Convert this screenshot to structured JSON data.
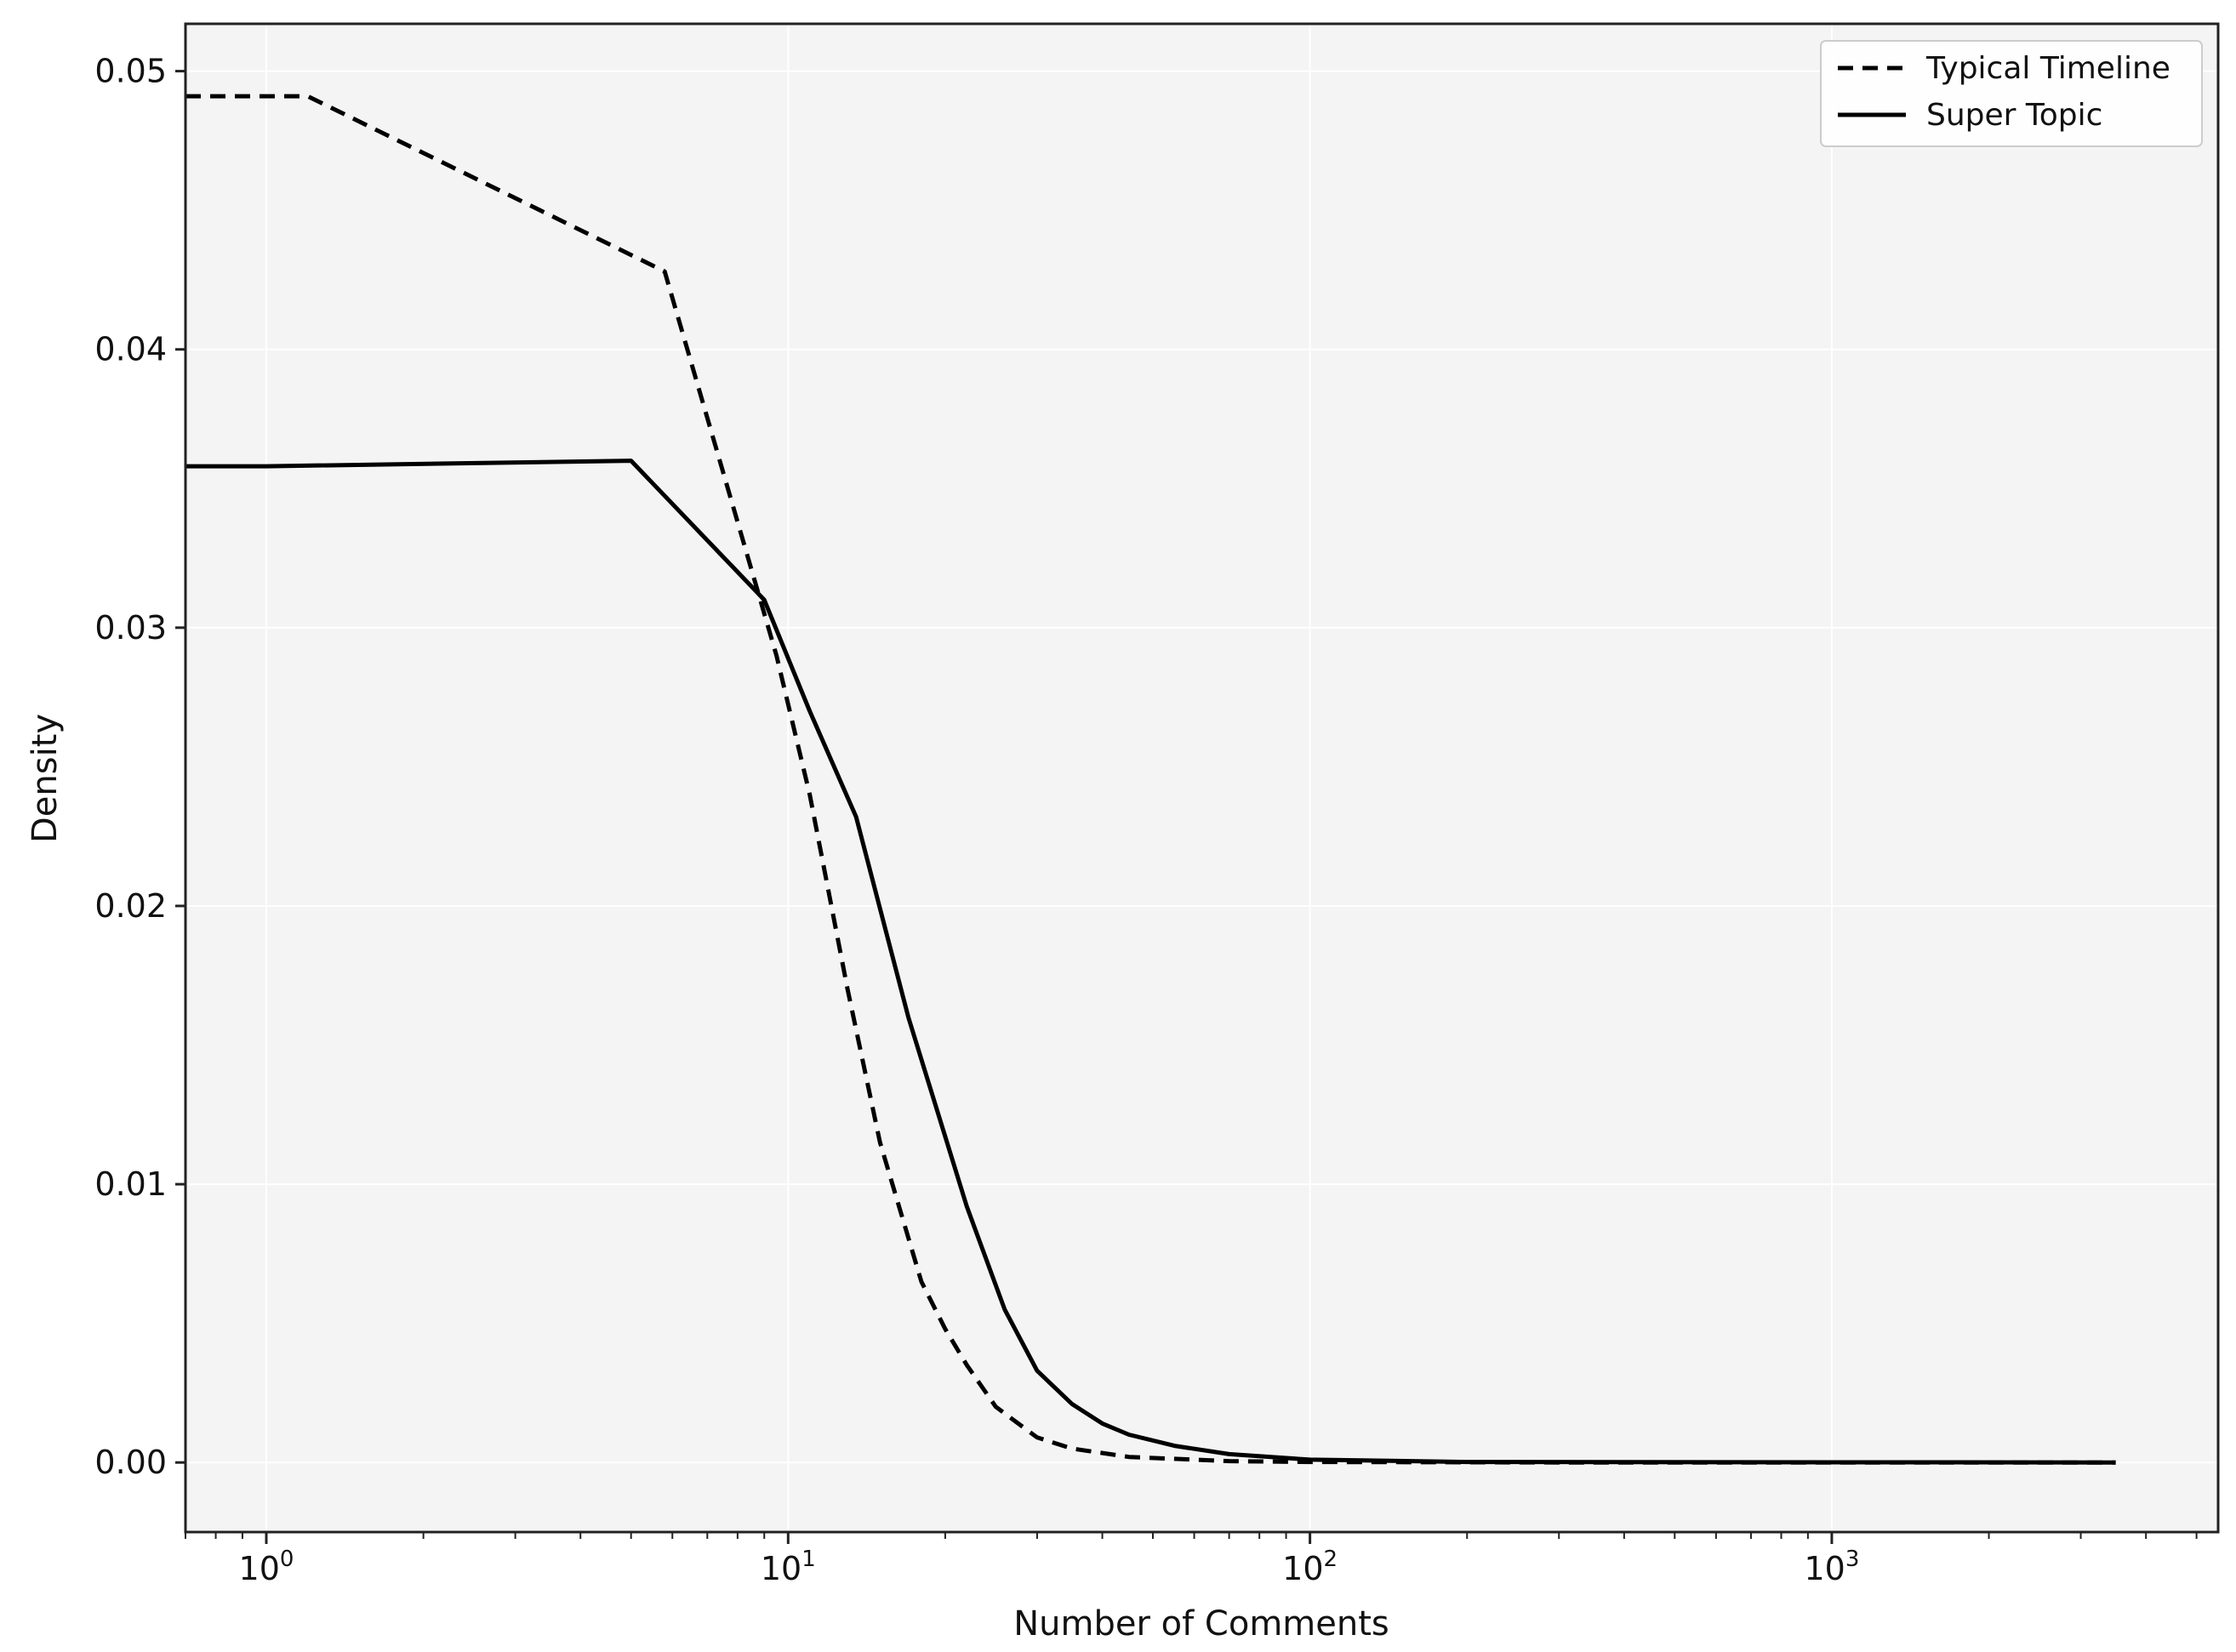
{
  "chart_data": {
    "type": "line",
    "title": "",
    "xlabel": "Number of Comments",
    "ylabel": "Density",
    "x_scale": "log",
    "xlim": [
      0.7,
      5500
    ],
    "ylim": [
      -0.0025,
      0.0517
    ],
    "x_ticks": [
      {
        "value": 1,
        "base": "10",
        "exp": "0"
      },
      {
        "value": 10,
        "base": "10",
        "exp": "1"
      },
      {
        "value": 100,
        "base": "10",
        "exp": "2"
      },
      {
        "value": 1000,
        "base": "10",
        "exp": "3"
      }
    ],
    "y_ticks": [
      {
        "value": 0.0,
        "label": "0.00"
      },
      {
        "value": 0.01,
        "label": "0.01"
      },
      {
        "value": 0.02,
        "label": "0.02"
      },
      {
        "value": 0.03,
        "label": "0.03"
      },
      {
        "value": 0.04,
        "label": "0.04"
      },
      {
        "value": 0.05,
        "label": "0.05"
      }
    ],
    "grid": true,
    "legend_position": "top-right",
    "series": [
      {
        "name": "Typical Timeline",
        "style": "dashed",
        "color": "#000000",
        "points": [
          [
            0.7,
            0.0491
          ],
          [
            1.2,
            0.0491
          ],
          [
            5.8,
            0.0428
          ],
          [
            9.5,
            0.029
          ],
          [
            11,
            0.024
          ],
          [
            13,
            0.017
          ],
          [
            15,
            0.0115
          ],
          [
            18,
            0.0065
          ],
          [
            20,
            0.0048
          ],
          [
            22,
            0.0035
          ],
          [
            25,
            0.002
          ],
          [
            30,
            0.0009
          ],
          [
            35,
            0.0005
          ],
          [
            45,
            0.0002
          ],
          [
            70,
            5e-05
          ],
          [
            100,
            2e-05
          ],
          [
            300,
            0.0
          ],
          [
            3500,
            0.0
          ]
        ]
      },
      {
        "name": "Super Topic",
        "style": "solid",
        "color": "#000000",
        "points": [
          [
            0.7,
            0.0358
          ],
          [
            1.0,
            0.0358
          ],
          [
            5.0,
            0.036
          ],
          [
            9.0,
            0.031
          ],
          [
            11,
            0.027
          ],
          [
            13.5,
            0.0232
          ],
          [
            17,
            0.016
          ],
          [
            22,
            0.0092
          ],
          [
            26,
            0.0055
          ],
          [
            30,
            0.0033
          ],
          [
            35,
            0.0021
          ],
          [
            40,
            0.0014
          ],
          [
            45,
            0.001
          ],
          [
            55,
            0.0006
          ],
          [
            70,
            0.0003
          ],
          [
            100,
            0.0001
          ],
          [
            200,
            2e-05
          ],
          [
            3500,
            0.0
          ]
        ]
      }
    ]
  }
}
